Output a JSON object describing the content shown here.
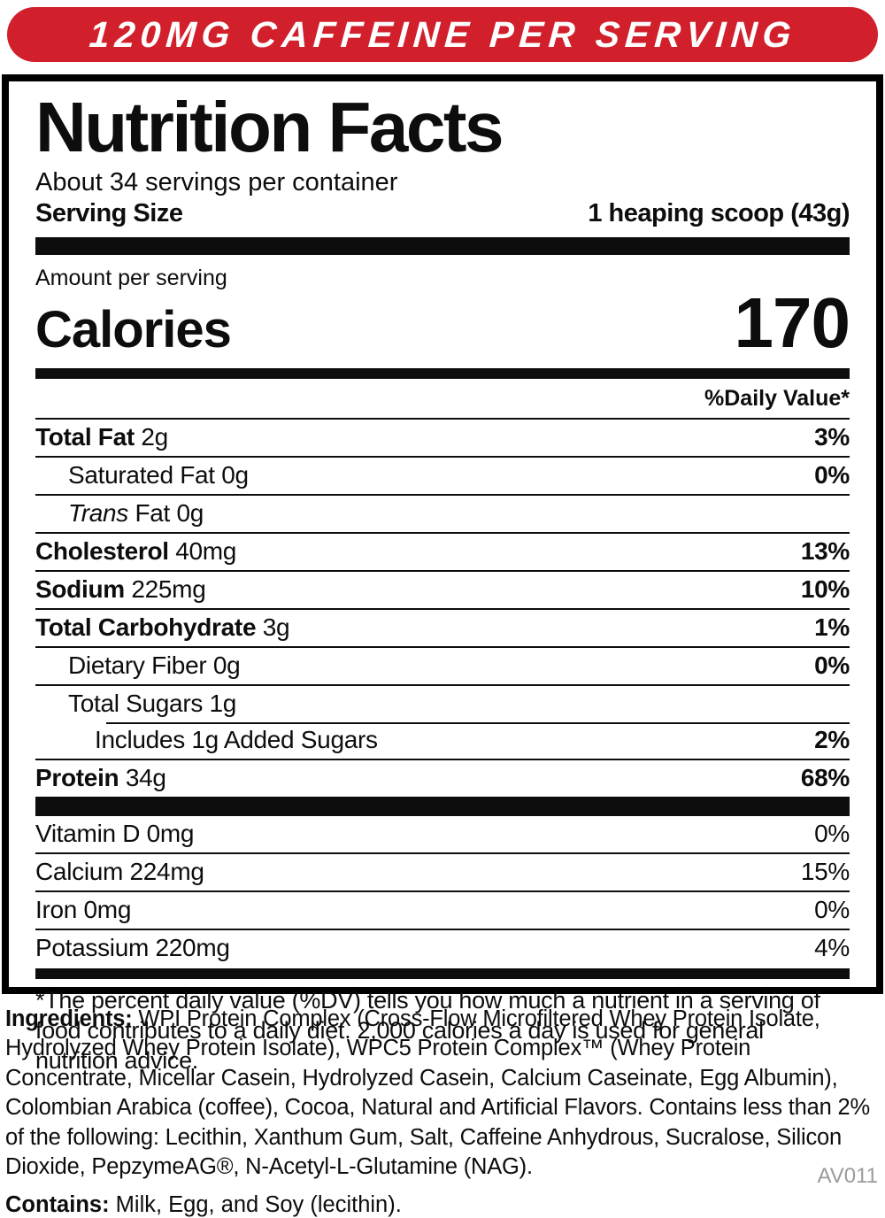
{
  "banner": {
    "text": "120MG CAFFEINE PER SERVING",
    "bg_color": "#d1202b",
    "text_color": "#ffffff"
  },
  "label": {
    "title": "Nutrition Facts",
    "servings_per_container": "About 34 servings per container",
    "serving_size_label": "Serving Size",
    "serving_size_value": "1 heaping scoop (43g)",
    "amount_per_serving": "Amount per serving",
    "calories_label": "Calories",
    "calories_value": "170",
    "daily_value_header": "%Daily Value*",
    "rows": [
      {
        "b": "Total Fat",
        "r": " 2g",
        "pct": "3%"
      },
      {
        "r": "Saturated Fat 0g",
        "pct": "0%"
      },
      {
        "i": "Trans",
        "r": " Fat 0g",
        "pct": ""
      },
      {
        "b": "Cholesterol",
        "r": " 40mg",
        "pct": "13%"
      },
      {
        "b": "Sodium",
        "r": " 225mg",
        "pct": "10%"
      },
      {
        "b": "Total Carbohydrate",
        "r": " 3g",
        "pct": "1%"
      },
      {
        "r": "Dietary Fiber 0g",
        "pct": "0%"
      },
      {
        "r": "Total Sugars 1g",
        "pct": ""
      },
      {
        "r": "Includes 1g Added Sugars",
        "pct": "2%"
      },
      {
        "b": "Protein",
        "r": " 34g",
        "pct": "68%"
      }
    ],
    "micronutrients": [
      {
        "r": "Vitamin D 0mg",
        "pct": "0%"
      },
      {
        "r": "Calcium 224mg",
        "pct": "15%"
      },
      {
        "r": "Iron 0mg",
        "pct": "0%"
      },
      {
        "r": "Potassium 220mg",
        "pct": "4%"
      }
    ],
    "footnote": "*The percent daily value (%DV) tells you how much a nutrient in a serving of food contributes to a daily diet. 2,000 calories a day is used for general nutrition advice."
  },
  "ingredients": {
    "heading": "Ingredients:",
    "text": " WPI Protein Complex (Cross-Flow Microfiltered Whey Protein Isolate, Hydrolyzed Whey Protein Isolate), WPC5 Protein Complex™ (Whey Protein Concentrate, Micellar Casein, Hydrolyzed Casein, Calcium Caseinate, Egg Albumin), Colombian Arabica (coffee), Cocoa, Natural and Artificial Flavors. Contains less than 2% of the following: Lecithin, Xanthum Gum, Salt, Caffeine Anhydrous, Sucralose, Silicon Dioxide, PepzymeAG®, N-Acetyl-L-Glutamine (NAG)."
  },
  "contains": {
    "heading": "Contains:",
    "text": " Milk, Egg, and Soy (lecithin)."
  },
  "footer_code": "AV011"
}
